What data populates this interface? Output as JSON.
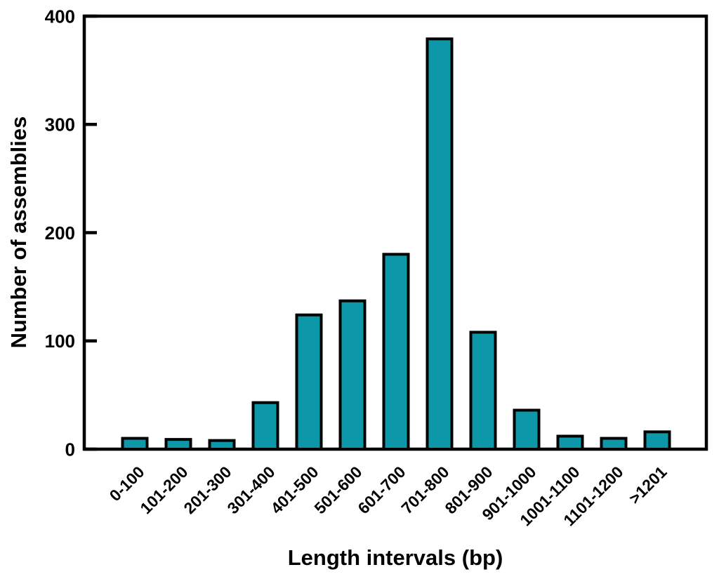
{
  "chart_data": {
    "type": "bar",
    "title": "",
    "xlabel": "Length intervals (bp)",
    "ylabel": "Number of assemblies",
    "categories": [
      "0-100",
      "101-200",
      "201-300",
      "301-400",
      "401-500",
      "501-600",
      "601-700",
      "701-800",
      "801-900",
      "901-1000",
      "1001-1100",
      "1101-1200",
      ">1201"
    ],
    "values": [
      10,
      9,
      8,
      43,
      124,
      137,
      180,
      379,
      108,
      36,
      12,
      10,
      16
    ],
    "yticks": [
      0,
      100,
      200,
      300,
      400
    ],
    "ylim": [
      0,
      400
    ],
    "grid": false,
    "legend": false,
    "bar_fill": "#0d98aa",
    "bar_stroke": "#000000",
    "axis_color": "#000000",
    "background": "#ffffff",
    "x_label_rotation_deg": 45
  }
}
